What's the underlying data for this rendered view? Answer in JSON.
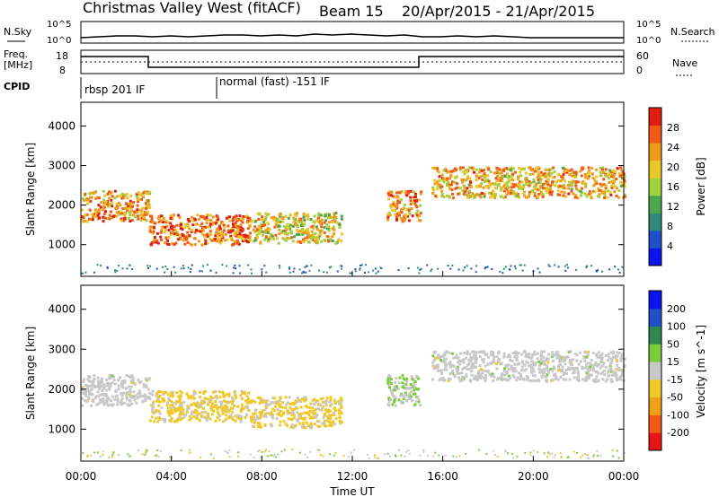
{
  "header": {
    "site": "Christmas Valley West (fitACF)",
    "beam": "Beam 15",
    "dates": "20/Apr/2015 - 21/Apr/2015"
  },
  "nsky_panel": {
    "left_label": "N.Sky",
    "left_ticks": [
      "10^5",
      "10^0"
    ],
    "right_label": "N.Search",
    "right_ticks": [
      "10^5",
      "10^0"
    ]
  },
  "freq_panel": {
    "left_label_line1": "Freq.",
    "left_label_line2": "[MHz]",
    "left_ticks": [
      "18",
      "8"
    ],
    "right_label": "Nave",
    "right_ticks": [
      "60",
      "0"
    ]
  },
  "cpid": {
    "label": "CPID",
    "modes": [
      {
        "name": "rbsp 201 IF",
        "start_hour": 0
      },
      {
        "name": "normal (fast) -151 IF",
        "start_hour": 6
      }
    ]
  },
  "x_axis": {
    "label": "Time UT",
    "ticks": [
      "00:00",
      "04:00",
      "08:00",
      "12:00",
      "16:00",
      "20:00",
      "00:00"
    ]
  },
  "chart_data": [
    {
      "type": "heatmap",
      "title": "Power",
      "ylabel": "Slant Range [km]",
      "xlabel": "Time UT",
      "xlim_hours": [
        0,
        24
      ],
      "ylim_km": [
        200,
        4600
      ],
      "y_ticks": [
        "1000",
        "2000",
        "3000",
        "4000"
      ],
      "colorbar": {
        "label": "Power [dB]",
        "ticks": [
          "28",
          "24",
          "20",
          "16",
          "12",
          "8",
          "4"
        ],
        "range": [
          0,
          30
        ],
        "colors": [
          "#0a14f0",
          "#1e50c8",
          "#2f8a78",
          "#4aa84a",
          "#9fd23c",
          "#e8c828",
          "#f09a1c",
          "#f05a14",
          "#e01e10"
        ]
      },
      "scatter_bands": [
        {
          "t_start": 0.0,
          "t_end": 3.0,
          "range_km": 2000,
          "power_db": 22
        },
        {
          "t_start": 3.0,
          "t_end": 7.5,
          "range_km": 1400,
          "power_db": 24
        },
        {
          "t_start": 7.5,
          "t_end": 11.5,
          "range_km": 1450,
          "power_db": 18
        },
        {
          "t_start": 13.5,
          "t_end": 15.0,
          "range_km": 2000,
          "power_db": 22
        },
        {
          "t_start": 15.5,
          "t_end": 24.0,
          "range_km": 2600,
          "power_db": 20
        }
      ]
    },
    {
      "type": "heatmap",
      "title": "Velocity",
      "ylabel": "Slant Range [km]",
      "xlabel": "Time UT",
      "xlim_hours": [
        0,
        24
      ],
      "ylim_km": [
        200,
        4600
      ],
      "y_ticks": [
        "1000",
        "2000",
        "3000",
        "4000"
      ],
      "colorbar": {
        "label": "Velocity [m s^-1]",
        "ticks": [
          "200",
          "100",
          "50",
          "15",
          "-15",
          "-50",
          "-100",
          "-200"
        ],
        "range": [
          -250,
          250
        ],
        "colors": [
          "#e81414",
          "#f05a14",
          "#f0a014",
          "#f0c828",
          "#c8c8c8",
          "#7acc3c",
          "#2f8a50",
          "#1e50c8",
          "#0a14f0"
        ]
      },
      "scatter_bands": [
        {
          "t_start": 0.0,
          "t_end": 3.0,
          "range_km": 2000,
          "velocity": 0
        },
        {
          "t_start": 3.0,
          "t_end": 7.5,
          "range_km": 1600,
          "velocity": -40
        },
        {
          "t_start": 7.5,
          "t_end": 11.5,
          "range_km": 1450,
          "velocity": -40
        },
        {
          "t_start": 13.5,
          "t_end": 15.0,
          "range_km": 2000,
          "velocity": 30
        },
        {
          "t_start": 15.5,
          "t_end": 24.0,
          "range_km": 2600,
          "velocity": 0
        }
      ]
    }
  ]
}
